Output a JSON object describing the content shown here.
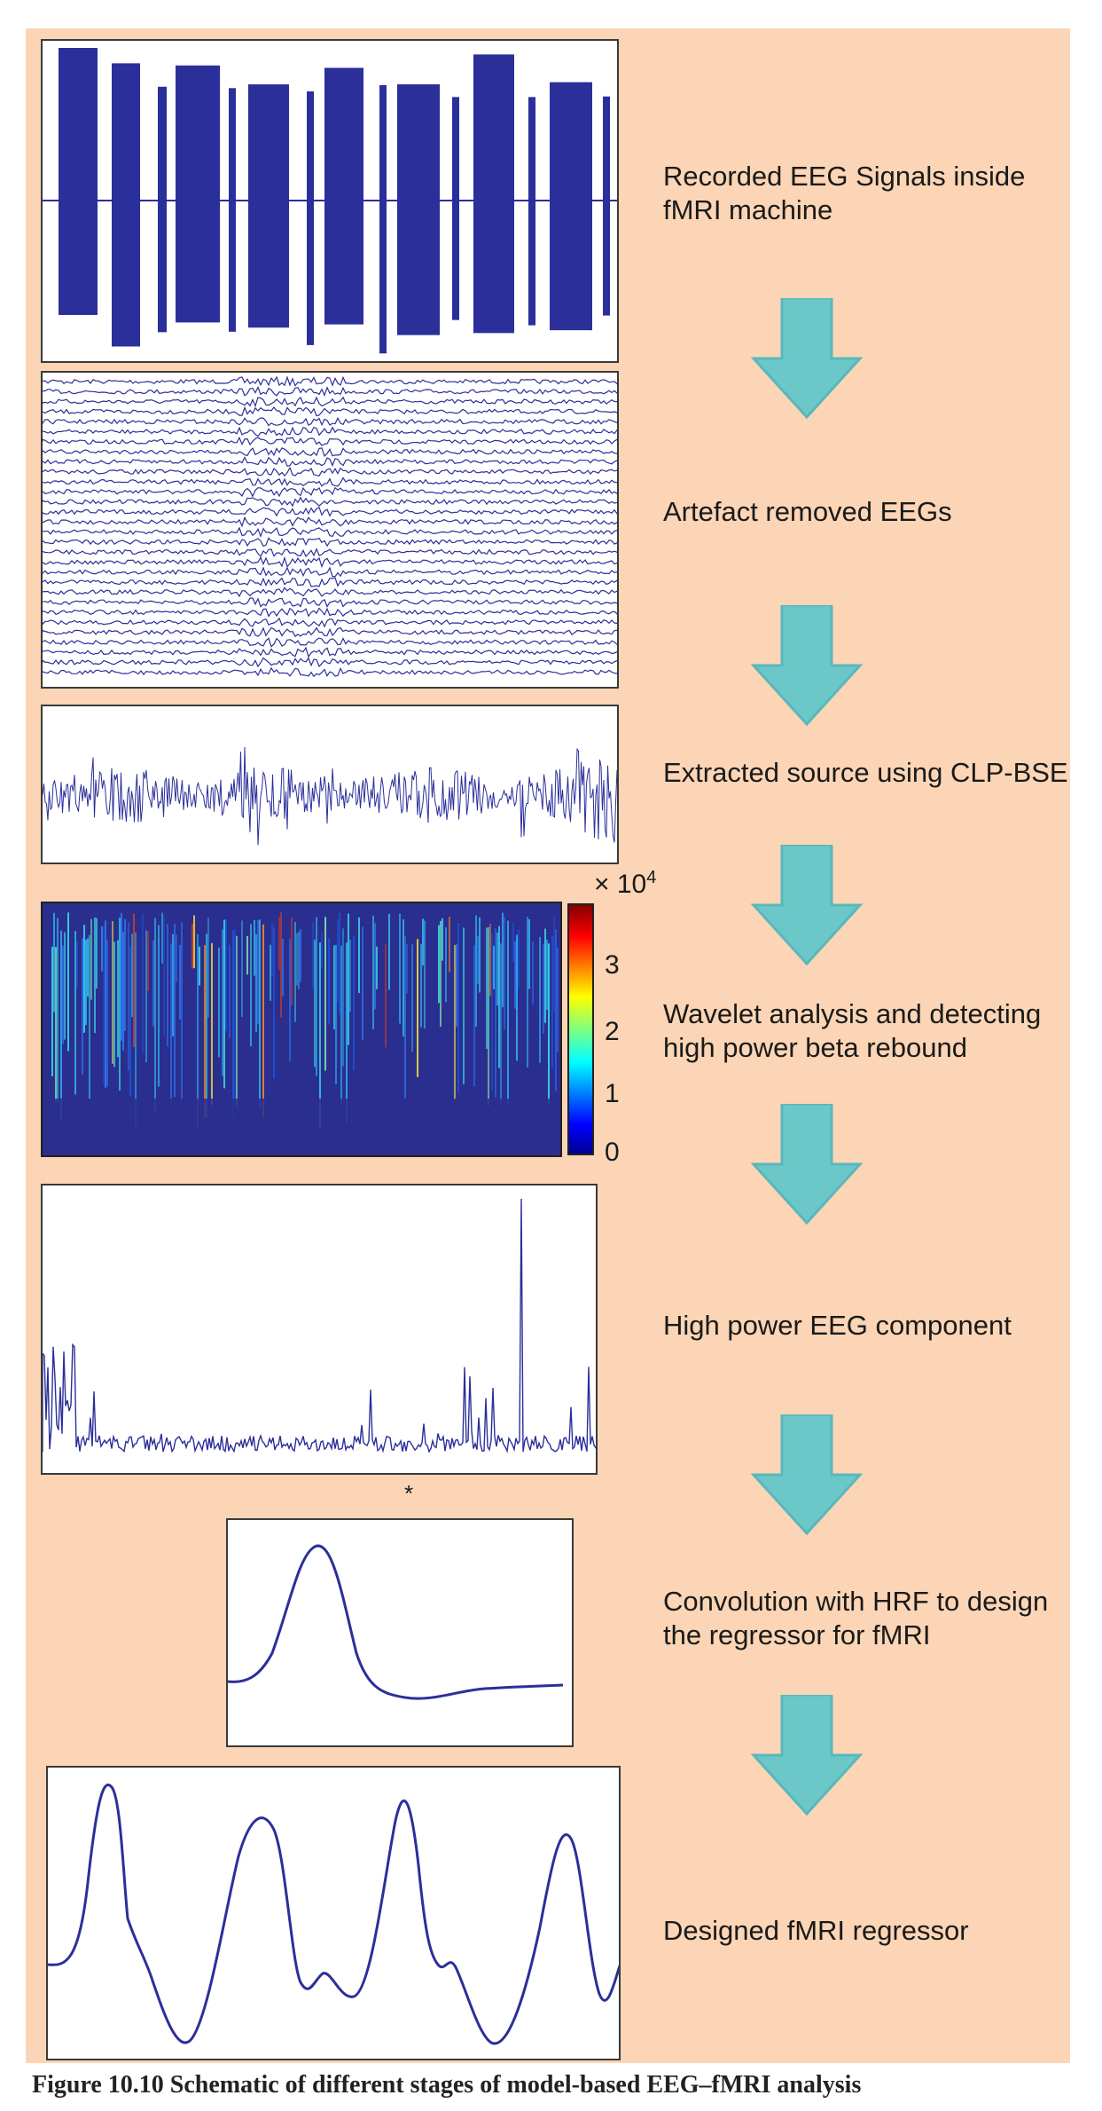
{
  "steps": [
    {
      "label": "Recorded EEG Signals inside fMRI machine"
    },
    {
      "label": "Artefact removed EEGs"
    },
    {
      "label": "Extracted source using CLP-BSE"
    },
    {
      "label": "Wavelet analysis and detecting high power beta rebound"
    },
    {
      "label": "High power EEG component"
    },
    {
      "label": "Convolution with HRF to design the regressor for fMRI"
    },
    {
      "label": "Designed fMRI regressor"
    }
  ],
  "colorbar": {
    "multiplier": "× 10",
    "exponent": "4",
    "ticks": [
      "3",
      "2",
      "1",
      "0"
    ]
  },
  "convolution_symbol": "*",
  "caption": "Figure 10.10   Schematic of different stages of model-based EEG–fMRI analysis",
  "colors": {
    "background": "#fbd5b5",
    "signal": "#2b2f9a",
    "arrow": "#6cc8c8",
    "heatmap_base": "#2a2e8f"
  }
}
